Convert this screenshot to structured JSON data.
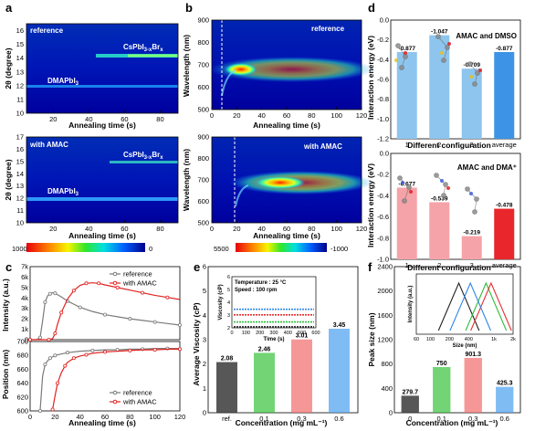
{
  "panels": {
    "a": {
      "label": "a",
      "top_tag": "reference",
      "bottom_tag": "with AMAC",
      "ylabel": "2θ (degree)",
      "xlabel": "Annealing time (s)",
      "peak_high": "CsPbI3-xBrx",
      "peak_low": "DMAPbI3",
      "x_ticks": [
        "20",
        "40",
        "60",
        "80"
      ],
      "top_y_ticks": [
        "10",
        "11",
        "12",
        "13",
        "14",
        "15",
        "16"
      ],
      "bottom_y_ticks": [
        "10",
        "11",
        "12",
        "13",
        "14",
        "15",
        "16",
        "17"
      ],
      "colorbar_ticks": [
        "1000",
        "0"
      ]
    },
    "b": {
      "label": "b",
      "top_tag": "reference",
      "bottom_tag": "with AMAC",
      "ylabel": "Wavelength (nm)",
      "xlabel": "Annealing time (s)",
      "x_ticks": [
        "0",
        "20",
        "40",
        "60",
        "80",
        "100",
        "120"
      ],
      "y_ticks": [
        "500",
        "600",
        "700",
        "800",
        "900"
      ],
      "colorbar_ticks": [
        "5500",
        "-1000"
      ]
    },
    "c": {
      "label": "c",
      "top_ylabel": "Intensity (a.u.)",
      "bottom_ylabel": "Position (nm)",
      "xlabel": "Annealing time (s)",
      "legend": [
        "reference",
        "with AMAC"
      ],
      "intensity_ticks": [
        "0",
        "1k",
        "2k",
        "3k",
        "4k",
        "5k",
        "6k",
        "7k"
      ],
      "position_ticks": [
        "600",
        "620",
        "640",
        "660",
        "680",
        "700"
      ],
      "x_ticks": [
        "0",
        "20",
        "40",
        "60",
        "80",
        "100",
        "120"
      ]
    },
    "d": {
      "label": "d",
      "ylabel": "Interaction energy (eV)",
      "xlabel": "Different configuration",
      "top_title": "AMAC and DMSO",
      "bottom_title": "AMAC and DMA⁺",
      "categories": [
        "1",
        "2",
        "3",
        "average"
      ],
      "top_y_ticks": [
        "0.0",
        "-0.2",
        "-0.4",
        "-0.6",
        "-0.8",
        "-1.0",
        "-1.2"
      ],
      "bottom_y_ticks": [
        "0.0",
        "-0.2",
        "-0.4",
        "-0.6",
        "-0.8",
        "-1.0"
      ],
      "top_labels": [
        "-0.877",
        "-1.047",
        "-0.709",
        "-0.877"
      ],
      "bottom_labels": [
        "-0.677",
        "-0.539",
        "-0.219",
        "-0.478"
      ]
    },
    "e": {
      "label": "e",
      "ylabel": "Average Viscosity (cP)",
      "xlabel": "Concentration (mg mL⁻¹)",
      "categories": [
        "ref.",
        "0.1",
        "0.3",
        "0.6"
      ],
      "y_ticks": [
        "0",
        "1",
        "2",
        "3",
        "4",
        "5",
        "6"
      ],
      "value_labels": [
        "2.08",
        "2.46",
        "3.01",
        "3.45"
      ],
      "inset_lines": [
        "Temperature : 25 °C",
        "Speed : 100 rpm"
      ],
      "inset_ylabel": "Viscosity (cP)",
      "inset_xlabel": "Time (s)",
      "inset_y_ticks": [
        "2",
        "3",
        "4",
        "5",
        "6"
      ],
      "inset_x_ticks": [
        "0",
        "100",
        "200",
        "300",
        "400",
        "500",
        "600"
      ]
    },
    "f": {
      "label": "f",
      "ylabel": "Peak size (nm)",
      "xlabel": "Concentration (mg mL⁻¹)",
      "categories": [
        "0",
        "0.1",
        "0.3",
        "0.6"
      ],
      "y_ticks": [
        "0",
        "400",
        "800",
        "1200",
        "1600",
        "2000",
        "2400"
      ],
      "value_labels": [
        "279.7",
        "750",
        "901.3",
        "425.3"
      ],
      "inset_ylabel": "Intensity (a.u.)",
      "inset_xlabel": "Size (nm)",
      "inset_x_ticks": [
        "60",
        "100",
        "200",
        "400",
        "1k",
        "2k"
      ]
    }
  },
  "colors": {
    "bar_blue": "#8ec5ee",
    "bar_blue_last": "#3d93e6",
    "bar_pink": "#f5a3a8",
    "bar_red_last": "#e8262b",
    "ref_line": "#7a7a7a",
    "amac_line": "#e0221f",
    "e_bars": [
      "#3a3a3a",
      "#36c23a",
      "#f26b6b",
      "#4a9ff0"
    ],
    "f_bars": [
      "#3a3a3a",
      "#36c23a",
      "#f26b6b",
      "#4a9ff0"
    ],
    "inset_lines": [
      "#222222",
      "#2fbd3a",
      "#e53030",
      "#2f86e8"
    ]
  },
  "chart_data": [
    {
      "panel": "a-top",
      "type": "heatmap",
      "title": "reference",
      "xlabel": "Annealing time (s)",
      "ylabel": "2θ (degree)",
      "xlim": [
        5,
        90
      ],
      "ylim": [
        10,
        16.5
      ],
      "peaks": [
        {
          "label": "CsPbI3-xBrx",
          "two_theta": 14.4,
          "start_s": 45
        },
        {
          "label": "DMAPbI3",
          "two_theta": 11.9,
          "start_s": 5
        }
      ],
      "colorbar": {
        "min": 0,
        "max": 1000
      }
    },
    {
      "panel": "a-bottom",
      "type": "heatmap",
      "title": "with AMAC",
      "xlabel": "Annealing time (s)",
      "ylabel": "2θ (degree)",
      "xlim": [
        5,
        90
      ],
      "ylim": [
        10,
        17
      ],
      "peaks": [
        {
          "label": "CsPbI3-xBrx",
          "two_theta": 14.5,
          "start_s": 55
        },
        {
          "label": "DMAPbI3",
          "two_theta": 11.8,
          "start_s": 5
        }
      ],
      "colorbar": {
        "min": 0,
        "max": 1000
      }
    },
    {
      "panel": "b-top",
      "type": "heatmap",
      "title": "reference",
      "xlabel": "Annealing time (s)",
      "ylabel": "Wavelength (nm)",
      "xlim": [
        0,
        120
      ],
      "ylim": [
        500,
        900
      ],
      "emission": {
        "onset_s": 8,
        "peak_nm": 690,
        "max_s": 22
      },
      "colorbar": {
        "min": -1000,
        "max": 5500
      }
    },
    {
      "panel": "b-bottom",
      "type": "heatmap",
      "title": "with AMAC",
      "xlabel": "Annealing time (s)",
      "ylabel": "Wavelength (nm)",
      "xlim": [
        0,
        120
      ],
      "ylim": [
        500,
        900
      ],
      "emission": {
        "onset_s": 18,
        "peak_nm": 685,
        "max_s": 55
      },
      "colorbar": {
        "min": -1000,
        "max": 5500
      }
    },
    {
      "panel": "c-top",
      "type": "line",
      "xlabel": "Annealing time (s)",
      "ylabel": "Intensity (a.u.)",
      "xlim": [
        0,
        120
      ],
      "ylim": [
        0,
        7000
      ],
      "series": [
        {
          "name": "reference",
          "x": [
            0,
            5,
            8,
            10,
            12,
            14,
            16,
            18,
            20,
            25,
            30,
            35,
            40,
            50,
            60,
            70,
            80,
            90,
            100,
            110,
            120
          ],
          "y": [
            0,
            0,
            200,
            1800,
            3600,
            4200,
            4400,
            4500,
            4450,
            4100,
            3700,
            3400,
            3100,
            2700,
            2400,
            2200,
            2000,
            1850,
            1700,
            1550,
            1400
          ]
        },
        {
          "name": "with AMAC",
          "x": [
            0,
            10,
            15,
            18,
            20,
            22,
            25,
            30,
            35,
            40,
            45,
            50,
            55,
            60,
            70,
            80,
            90,
            100,
            110,
            120
          ],
          "y": [
            0,
            0,
            0,
            100,
            600,
            1500,
            2600,
            3900,
            4700,
            5200,
            5400,
            5450,
            5400,
            5250,
            5000,
            4750,
            4500,
            4250,
            4050,
            3850
          ]
        }
      ]
    },
    {
      "panel": "c-bottom",
      "type": "line",
      "xlabel": "Annealing time (s)",
      "ylabel": "Position (nm)",
      "xlim": [
        0,
        120
      ],
      "ylim": [
        600,
        700
      ],
      "series": [
        {
          "name": "reference",
          "x": [
            8,
            10,
            12,
            14,
            16,
            18,
            20,
            25,
            30,
            40,
            50,
            60,
            70,
            80,
            90,
            100,
            110,
            120
          ],
          "y": [
            600,
            650,
            667,
            672,
            676,
            678,
            680,
            682,
            684,
            686,
            687,
            688,
            688,
            689,
            689,
            690,
            690,
            690
          ]
        },
        {
          "name": "with AMAC",
          "x": [
            18,
            20,
            22,
            25,
            28,
            30,
            35,
            40,
            45,
            50,
            60,
            70,
            80,
            90,
            100,
            110,
            120
          ],
          "y": [
            602,
            622,
            640,
            655,
            665,
            670,
            676,
            679,
            681,
            683,
            685,
            686,
            687,
            688,
            688,
            689,
            689
          ]
        }
      ]
    },
    {
      "panel": "d-top",
      "type": "bar",
      "title": "AMAC and DMSO",
      "xlabel": "Different configuration",
      "ylabel": "Interaction energy (eV)",
      "categories": [
        "1",
        "2",
        "3",
        "average"
      ],
      "values": [
        -0.877,
        -1.047,
        -0.709,
        -0.877
      ],
      "ylim": [
        0,
        -1.2
      ]
    },
    {
      "panel": "d-bottom",
      "type": "bar",
      "title": "AMAC and DMA⁺",
      "xlabel": "Different configuration",
      "ylabel": "Interaction energy (eV)",
      "categories": [
        "1",
        "2",
        "3",
        "average"
      ],
      "values": [
        -0.677,
        -0.539,
        -0.219,
        -0.478
      ],
      "ylim": [
        0,
        -1.0
      ]
    },
    {
      "panel": "e",
      "type": "bar",
      "xlabel": "Concentration (mg mL⁻¹)",
      "ylabel": "Average Viscosity (cP)",
      "categories": [
        "ref.",
        "0.1",
        "0.3",
        "0.6"
      ],
      "values": [
        2.08,
        2.46,
        3.01,
        3.45
      ],
      "ylim": [
        0,
        6
      ],
      "inset": {
        "type": "line",
        "xlabel": "Time (s)",
        "ylabel": "Viscosity (cP)",
        "xlim": [
          0,
          600
        ],
        "ylim": [
          2,
          6
        ],
        "levels": [
          2.08,
          2.46,
          3.01,
          3.45
        ]
      }
    },
    {
      "panel": "f",
      "type": "bar",
      "xlabel": "Concentration (mg mL⁻¹)",
      "ylabel": "Peak size (nm)",
      "categories": [
        "0",
        "0.1",
        "0.3",
        "0.6"
      ],
      "values": [
        279.7,
        750,
        901.3,
        425.3
      ],
      "ylim": [
        0,
        2400
      ],
      "inset": {
        "type": "line",
        "xlabel": "Size (nm)",
        "ylabel": "Intensity (a.u.)",
        "x_scale": "log",
        "xlim": [
          60,
          2000
        ],
        "peaks_nm": [
          279.7,
          750,
          901.3,
          425.3
        ]
      }
    }
  ]
}
